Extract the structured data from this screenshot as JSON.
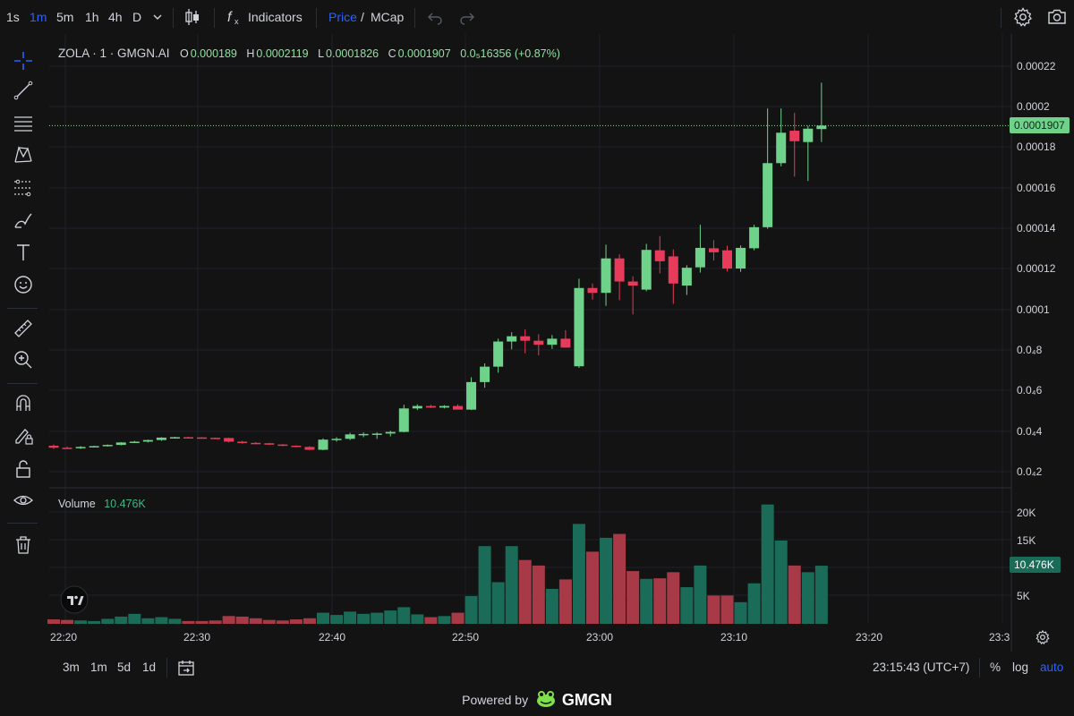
{
  "toolbar": {
    "intervals": [
      "1s",
      "1m",
      "5m",
      "1h",
      "4h",
      "D"
    ],
    "active_interval": "1m",
    "indicators_label": "Indicators",
    "price_label": "Price",
    "slash": "/",
    "mcap_label": "MCap"
  },
  "legend": {
    "symbol": "ZOLA · 1 · GMGN.AI",
    "o_label": "O",
    "o_value": "0.000189",
    "h_label": "H",
    "h_value": "0.0002119",
    "l_label": "L",
    "l_value": "0.0001826",
    "c_label": "C",
    "c_value": "0.0001907",
    "change": "0.0₅16356 (+0.87%)"
  },
  "volume": {
    "label": "Volume",
    "value": "10.476K"
  },
  "price_axis": {
    "ticks": [
      "0.00022",
      "0.0002",
      "0.00018",
      "0.00016",
      "0.00014",
      "0.00012",
      "0.0001",
      "0.0₄8",
      "0.0₄6",
      "0.0₄4",
      "0.0₄2"
    ],
    "last_price": "0.0001907"
  },
  "volume_axis": {
    "ticks": [
      "20K",
      "15K",
      "5K"
    ],
    "last_volume": "10.476K"
  },
  "time_axis": {
    "ticks": [
      "22:20",
      "22:30",
      "22:40",
      "22:50",
      "23:00",
      "23:10",
      "23:20",
      "23:3"
    ]
  },
  "bottom": {
    "ranges": [
      "3m",
      "1m",
      "5d",
      "1d"
    ],
    "clock": "23:15:43 (UTC+7)",
    "percent": "%",
    "log": "log",
    "auto": "auto"
  },
  "footer": {
    "powered_by": "Powered by",
    "brand": "GMGN"
  },
  "colors": {
    "up": "#6fd28a",
    "down": "#e83a5a",
    "vol_up": "#1a6b58",
    "vol_down": "#a83a47",
    "accent": "#2962ff",
    "label_up": "#8fe0a0"
  },
  "chart_data": {
    "type": "candlestick",
    "title": "ZOLA · 1 · GMGN.AI",
    "x_start": "22:20",
    "interval_minutes": 1,
    "ylim": [
      1.2e-05,
      0.000228
    ],
    "volume_lim": [
      0,
      24000
    ],
    "candles": [
      {
        "o": 3.28e-05,
        "h": 3.34e-05,
        "l": 3.12e-05,
        "c": 3.18e-05,
        "v": 800
      },
      {
        "o": 3.18e-05,
        "h": 3.24e-05,
        "l": 3.12e-05,
        "c": 3.16e-05,
        "v": 700
      },
      {
        "o": 3.16e-05,
        "h": 3.26e-05,
        "l": 3.12e-05,
        "c": 3.22e-05,
        "v": 600
      },
      {
        "o": 3.22e-05,
        "h": 3.28e-05,
        "l": 3.2e-05,
        "c": 3.26e-05,
        "v": 500
      },
      {
        "o": 3.26e-05,
        "h": 3.34e-05,
        "l": 3.24e-05,
        "c": 3.32e-05,
        "v": 900
      },
      {
        "o": 3.32e-05,
        "h": 3.46e-05,
        "l": 3.3e-05,
        "c": 3.44e-05,
        "v": 1300
      },
      {
        "o": 3.44e-05,
        "h": 3.52e-05,
        "l": 3.42e-05,
        "c": 3.48e-05,
        "v": 1800
      },
      {
        "o": 3.48e-05,
        "h": 3.58e-05,
        "l": 3.44e-05,
        "c": 3.56e-05,
        "v": 1000
      },
      {
        "o": 3.56e-05,
        "h": 3.7e-05,
        "l": 3.52e-05,
        "c": 3.68e-05,
        "v": 1200
      },
      {
        "o": 3.68e-05,
        "h": 3.72e-05,
        "l": 3.64e-05,
        "c": 3.7e-05,
        "v": 900
      },
      {
        "o": 3.7e-05,
        "h": 3.72e-05,
        "l": 3.66e-05,
        "c": 3.69e-05,
        "v": 500
      },
      {
        "o": 3.69e-05,
        "h": 3.7e-05,
        "l": 3.66e-05,
        "c": 3.67e-05,
        "v": 500
      },
      {
        "o": 3.67e-05,
        "h": 3.68e-05,
        "l": 3.64e-05,
        "c": 3.66e-05,
        "v": 600
      },
      {
        "o": 3.66e-05,
        "h": 3.68e-05,
        "l": 3.44e-05,
        "c": 3.48e-05,
        "v": 1400
      },
      {
        "o": 3.48e-05,
        "h": 3.52e-05,
        "l": 3.38e-05,
        "c": 3.42e-05,
        "v": 1300
      },
      {
        "o": 3.42e-05,
        "h": 3.46e-05,
        "l": 3.36e-05,
        "c": 3.4e-05,
        "v": 1000
      },
      {
        "o": 3.4e-05,
        "h": 3.42e-05,
        "l": 3.32e-05,
        "c": 3.34e-05,
        "v": 700
      },
      {
        "o": 3.34e-05,
        "h": 3.36e-05,
        "l": 3.26e-05,
        "c": 3.28e-05,
        "v": 600
      },
      {
        "o": 3.28e-05,
        "h": 3.3e-05,
        "l": 3.2e-05,
        "c": 3.22e-05,
        "v": 800
      },
      {
        "o": 3.22e-05,
        "h": 3.26e-05,
        "l": 3.06e-05,
        "c": 3.08e-05,
        "v": 1000
      },
      {
        "o": 3.08e-05,
        "h": 3.64e-05,
        "l": 3.06e-05,
        "c": 3.58e-05,
        "v": 2000
      },
      {
        "o": 3.58e-05,
        "h": 3.7e-05,
        "l": 3.48e-05,
        "c": 3.62e-05,
        "v": 1600
      },
      {
        "o": 3.62e-05,
        "h": 3.92e-05,
        "l": 3.56e-05,
        "c": 3.84e-05,
        "v": 2200
      },
      {
        "o": 3.84e-05,
        "h": 3.94e-05,
        "l": 3.7e-05,
        "c": 3.86e-05,
        "v": 1800
      },
      {
        "o": 3.86e-05,
        "h": 3.94e-05,
        "l": 3.62e-05,
        "c": 3.88e-05,
        "v": 2000
      },
      {
        "o": 3.88e-05,
        "h": 4.02e-05,
        "l": 3.74e-05,
        "c": 3.96e-05,
        "v": 2400
      },
      {
        "o": 3.96e-05,
        "h": 5.3e-05,
        "l": 3.94e-05,
        "c": 5.12e-05,
        "v": 3000
      },
      {
        "o": 5.12e-05,
        "h": 5.32e-05,
        "l": 5.04e-05,
        "c": 5.24e-05,
        "v": 1700
      },
      {
        "o": 5.24e-05,
        "h": 5.3e-05,
        "l": 5.14e-05,
        "c": 5.16e-05,
        "v": 1200
      },
      {
        "o": 5.16e-05,
        "h": 5.28e-05,
        "l": 5.12e-05,
        "c": 5.24e-05,
        "v": 1400
      },
      {
        "o": 5.24e-05,
        "h": 5.32e-05,
        "l": 5.1e-05,
        "c": 5.06e-05,
        "v": 2000
      },
      {
        "o": 5.06e-05,
        "h": 6.66e-05,
        "l": 5.04e-05,
        "c": 6.42e-05,
        "v": 5000
      },
      {
        "o": 6.42e-05,
        "h": 7.34e-05,
        "l": 6.14e-05,
        "c": 7.18e-05,
        "v": 14000
      },
      {
        "o": 7.18e-05,
        "h": 8.56e-05,
        "l": 6.88e-05,
        "c": 8.42e-05,
        "v": 7500
      },
      {
        "o": 8.42e-05,
        "h": 8.88e-05,
        "l": 8.04e-05,
        "c": 8.68e-05,
        "v": 14000
      },
      {
        "o": 8.68e-05,
        "h": 9.02e-05,
        "l": 7.84e-05,
        "c": 8.46e-05,
        "v": 11500
      },
      {
        "o": 8.46e-05,
        "h": 8.78e-05,
        "l": 7.74e-05,
        "c": 8.26e-05,
        "v": 10500
      },
      {
        "o": 8.26e-05,
        "h": 8.74e-05,
        "l": 8.06e-05,
        "c": 8.56e-05,
        "v": 6300
      },
      {
        "o": 8.56e-05,
        "h": 8.98e-05,
        "l": 8.12e-05,
        "c": 8.12e-05,
        "v": 8000
      },
      {
        "o": 7.2e-05,
        "h": 0.0001152,
        "l": 7.12e-05,
        "c": 0.0001106,
        "v": 18000
      },
      {
        "o": 0.0001106,
        "h": 0.0001128,
        "l": 0.0001048,
        "c": 0.0001082,
        "v": 13000
      },
      {
        "o": 0.0001082,
        "h": 0.000132,
        "l": 0.0001018,
        "c": 0.0001252,
        "v": 15500
      },
      {
        "o": 0.0001252,
        "h": 0.0001272,
        "l": 0.0001046,
        "c": 0.0001138,
        "v": 16200
      },
      {
        "o": 0.0001138,
        "h": 0.0001164,
        "l": 9.76e-05,
        "c": 0.0001118,
        "v": 9500
      },
      {
        "o": 0.0001098,
        "h": 0.0001324,
        "l": 0.000109,
        "c": 0.0001294,
        "v": 8100
      },
      {
        "o": 0.0001292,
        "h": 0.0001362,
        "l": 0.0001178,
        "c": 0.0001238,
        "v": 8200
      },
      {
        "o": 0.0001262,
        "h": 0.0001296,
        "l": 0.0001028,
        "c": 0.0001128,
        "v": 9300
      },
      {
        "o": 0.0001118,
        "h": 0.0001218,
        "l": 0.0001072,
        "c": 0.0001206,
        "v": 6600
      },
      {
        "o": 0.0001208,
        "h": 0.0001418,
        "l": 0.0001182,
        "c": 0.0001304,
        "v": 10500
      },
      {
        "o": 0.0001302,
        "h": 0.0001342,
        "l": 0.0001242,
        "c": 0.0001282,
        "v": 5100
      },
      {
        "o": 0.0001292,
        "h": 0.0001314,
        "l": 0.0001188,
        "c": 0.0001202,
        "v": 5100
      },
      {
        "o": 0.0001202,
        "h": 0.0001316,
        "l": 0.0001186,
        "c": 0.0001304,
        "v": 3900
      },
      {
        "o": 0.0001302,
        "h": 0.0001418,
        "l": 0.0001292,
        "c": 0.0001406,
        "v": 7300
      },
      {
        "o": 0.0001406,
        "h": 0.0001992,
        "l": 0.0001398,
        "c": 0.0001722,
        "v": 21500
      },
      {
        "o": 0.0001722,
        "h": 0.0001992,
        "l": 0.0001706,
        "c": 0.0001872,
        "v": 15000
      },
      {
        "o": 0.0001882,
        "h": 0.000197,
        "l": 0.0001656,
        "c": 0.000183,
        "v": 10500
      },
      {
        "o": 0.0001826,
        "h": 0.0001906,
        "l": 0.0001634,
        "c": 0.0001892,
        "v": 9300
      },
      {
        "o": 0.000189,
        "h": 0.0002119,
        "l": 0.0001826,
        "c": 0.0001907,
        "v": 10476
      }
    ]
  }
}
